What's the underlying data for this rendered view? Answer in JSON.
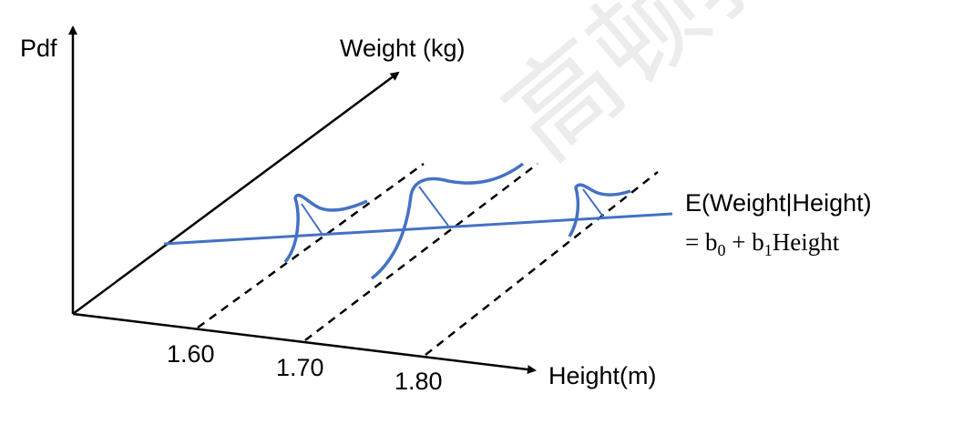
{
  "watermark": "高顿教",
  "axes": {
    "y_label": "Pdf",
    "depth_label": "Weight (kg)",
    "x_label": "Height(m)"
  },
  "ticks": [
    "1.60",
    "1.70",
    "1.80"
  ],
  "regression": {
    "line1": "E(Weight|Height)",
    "line2_prefix": "= b",
    "b0_sub": "0",
    "plus": " + b",
    "b1_sub": "1",
    "line2_suffix": "Height"
  },
  "colors": {
    "axis": "#000000",
    "curve": "#4472C4"
  }
}
